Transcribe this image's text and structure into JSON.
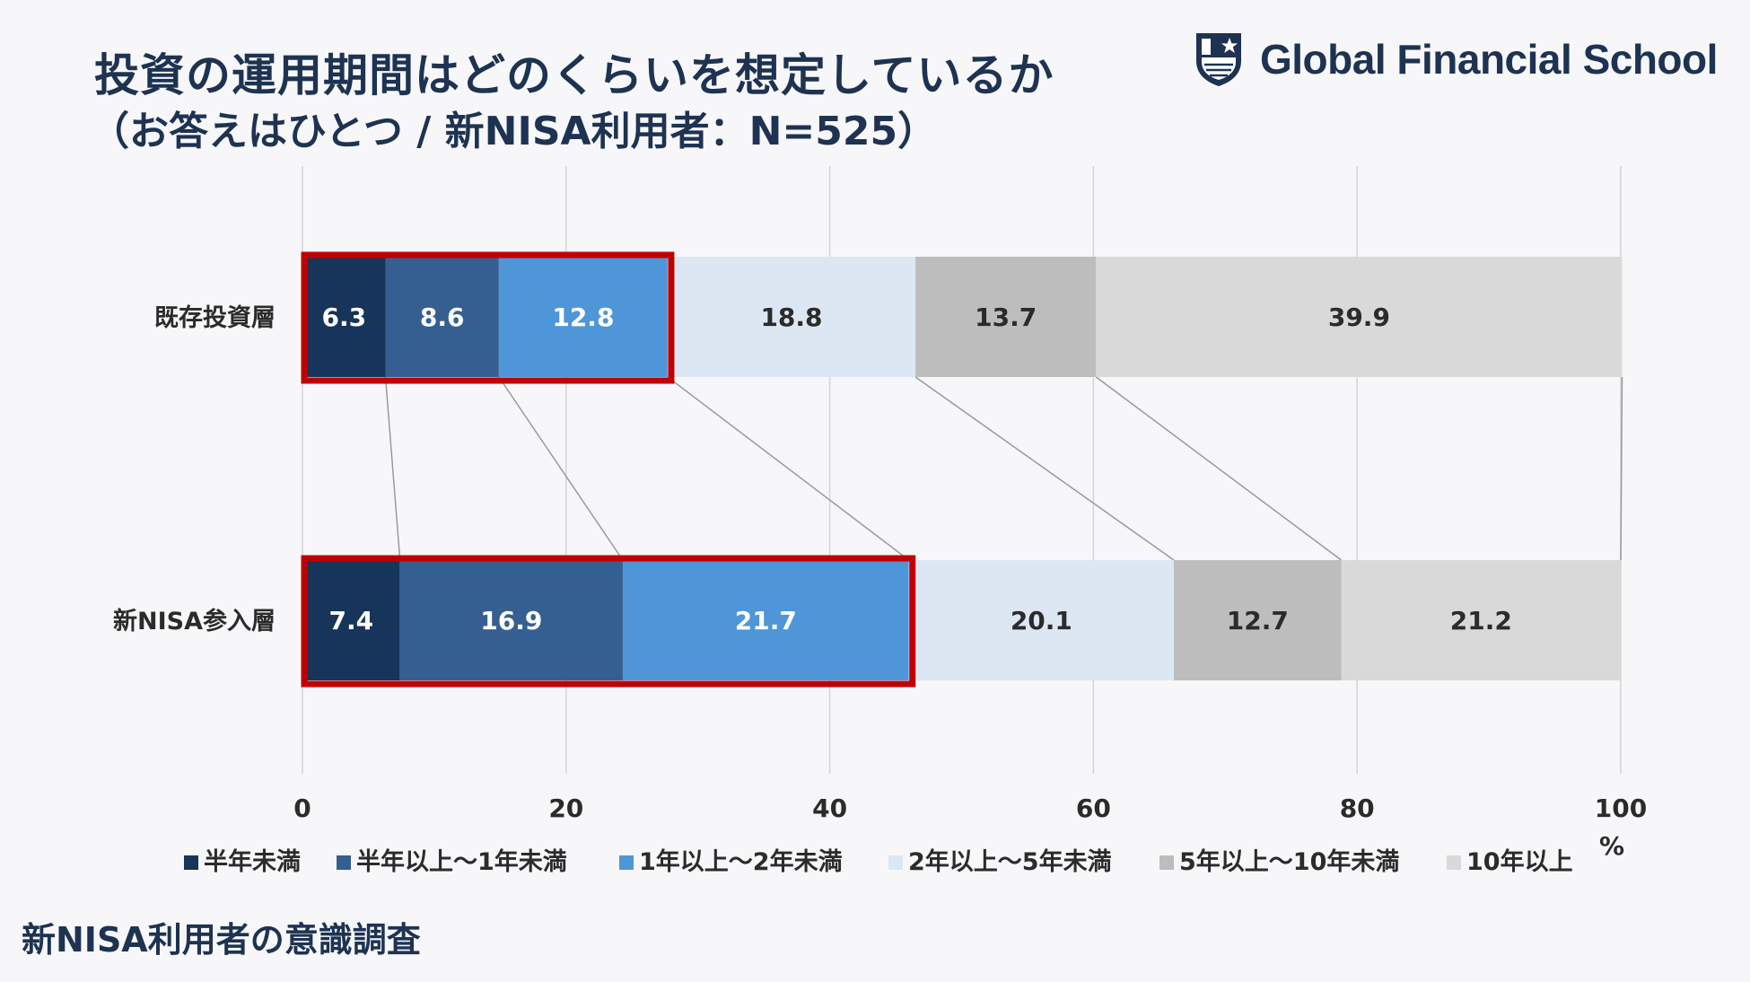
{
  "header": {
    "title": "投資の運用期間はどのくらいを想定しているか",
    "subtitle": "（お答えはひとつ / 新NISA利用者：N=525）"
  },
  "logo": {
    "text": "Global Financial School",
    "icon": "shield-star-icon"
  },
  "footer": {
    "text": "新NISA利用者の意識調査"
  },
  "chart_data": {
    "type": "bar",
    "orientation": "horizontal",
    "stacked": true,
    "categories": [
      "既存投資層",
      "新NISA参入層"
    ],
    "series": [
      {
        "name": "半年未満",
        "values": [
          6.3,
          7.4
        ],
        "color": "#17345a",
        "text_color": "#ffffff"
      },
      {
        "name": "半年以上～1年未満",
        "values": [
          8.6,
          16.9
        ],
        "color": "#365f91",
        "text_color": "#ffffff"
      },
      {
        "name": "1年以上～2年未満",
        "values": [
          12.8,
          21.7
        ],
        "color": "#4e96d8",
        "text_color": "#ffffff"
      },
      {
        "name": "2年以上～5年未満",
        "values": [
          18.8,
          20.1
        ],
        "color": "#dde7f3",
        "text_color": "#2b2b2b"
      },
      {
        "name": "5年以上～10年未満",
        "values": [
          13.7,
          12.7
        ],
        "color": "#bdbdbd",
        "text_color": "#2b2b2b"
      },
      {
        "name": "10年以上",
        "values": [
          39.9,
          21.2
        ],
        "color": "#d9d9d9",
        "text_color": "#2b2b2b"
      }
    ],
    "xlim": [
      0,
      100
    ],
    "xticks": [
      "0",
      "20",
      "40",
      "60",
      "80",
      "100"
    ],
    "xunit": "%",
    "grid": true,
    "legend": "bottom",
    "highlight": {
      "series_count": 3,
      "color": "#c00000"
    },
    "connector_lines": true
  }
}
